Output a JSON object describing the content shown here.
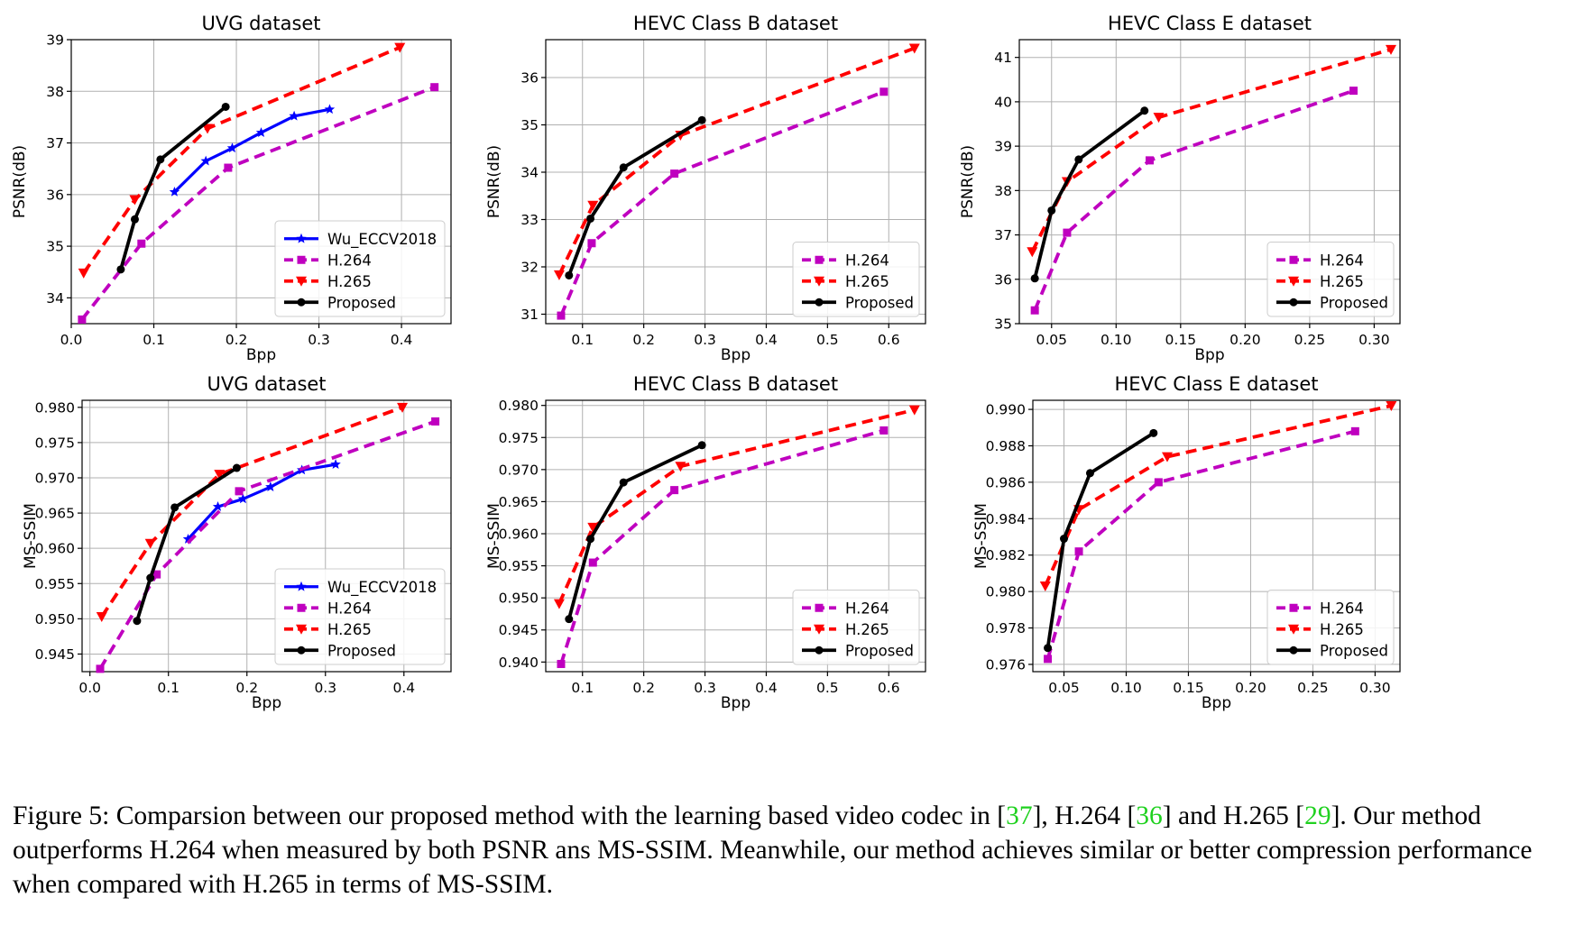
{
  "figure": {
    "caption": {
      "prefix": "Figure 5: Comparsion between our proposed method with the learning based video codec in [",
      "ref1": "37",
      "mid1": "], H.264 [",
      "ref2": "36",
      "mid2": "] and H.265 [",
      "ref3": "29",
      "suffix": "]. Our method outperforms H.264 when measured by both PSNR ans MS-SSIM. Meanwhile, our method achieves similar or better compression performance when compared with H.265 in terms of MS-SSIM."
    }
  },
  "colors": {
    "wu": "#0000ff",
    "h264": "#bf00bf",
    "h265": "#ff0000",
    "proposed": "#000000"
  },
  "chart_data": [
    {
      "type": "line",
      "title": "UVG dataset",
      "xlabel": "Bpp",
      "ylabel": "PSNR(dB)",
      "xlim": [
        0.0,
        0.46
      ],
      "ylim": [
        33.5,
        39.0
      ],
      "xticks": [
        0.0,
        0.1,
        0.2,
        0.3,
        0.4
      ],
      "xtick_labels": [
        "0.0",
        "0.1",
        "0.2",
        "0.3",
        "0.4"
      ],
      "yticks": [
        34,
        35,
        36,
        37,
        38,
        39
      ],
      "ytick_labels": [
        "34",
        "35",
        "36",
        "37",
        "38",
        "39"
      ],
      "grid": true,
      "legend": "lower-right",
      "series": [
        {
          "name": "Wu_ECCV2018",
          "style": "wu",
          "x": [
            0.125,
            0.163,
            0.195,
            0.23,
            0.27,
            0.313
          ],
          "y": [
            36.05,
            36.65,
            36.9,
            37.2,
            37.52,
            37.65
          ]
        },
        {
          "name": "H.264",
          "style": "h264",
          "x": [
            0.013,
            0.085,
            0.19,
            0.44
          ],
          "y": [
            33.58,
            35.05,
            36.52,
            38.08
          ]
        },
        {
          "name": "H.265",
          "style": "h265",
          "x": [
            0.015,
            0.077,
            0.165,
            0.398
          ],
          "y": [
            34.48,
            35.9,
            37.28,
            38.85
          ]
        },
        {
          "name": "Proposed",
          "style": "proposed",
          "x": [
            0.06,
            0.077,
            0.108,
            0.187
          ],
          "y": [
            34.55,
            35.52,
            36.68,
            37.7
          ]
        }
      ]
    },
    {
      "type": "line",
      "title": "HEVC Class B dataset",
      "xlabel": "Bpp",
      "ylabel": "PSNR(dB)",
      "xlim": [
        0.04,
        0.66
      ],
      "ylim": [
        30.8,
        36.8
      ],
      "xticks": [
        0.1,
        0.2,
        0.3,
        0.4,
        0.5,
        0.6
      ],
      "xtick_labels": [
        "0.1",
        "0.2",
        "0.3",
        "0.4",
        "0.5",
        "0.6"
      ],
      "yticks": [
        31,
        32,
        33,
        34,
        35,
        36
      ],
      "ytick_labels": [
        "31",
        "32",
        "33",
        "34",
        "35",
        "36"
      ],
      "grid": true,
      "legend": "lower-right",
      "series": [
        {
          "name": "H.264",
          "style": "h264",
          "x": [
            0.065,
            0.115,
            0.25,
            0.592
          ],
          "y": [
            30.97,
            32.5,
            33.97,
            35.7
          ]
        },
        {
          "name": "H.265",
          "style": "h265",
          "x": [
            0.062,
            0.117,
            0.26,
            0.642
          ],
          "y": [
            31.83,
            33.3,
            34.78,
            36.62
          ]
        },
        {
          "name": "Proposed",
          "style": "proposed",
          "x": [
            0.078,
            0.113,
            0.167,
            0.295
          ],
          "y": [
            31.82,
            33.02,
            34.1,
            35.1
          ]
        }
      ]
    },
    {
      "type": "line",
      "title": "HEVC Class E dataset",
      "xlabel": "Bpp",
      "ylabel": "PSNR(dB)",
      "xlim": [
        0.025,
        0.32
      ],
      "ylim": [
        35.0,
        41.4
      ],
      "xticks": [
        0.05,
        0.1,
        0.15,
        0.2,
        0.25,
        0.3
      ],
      "xtick_labels": [
        "0.05",
        "0.10",
        "0.15",
        "0.20",
        "0.25",
        "0.30"
      ],
      "yticks": [
        35,
        36,
        37,
        38,
        39,
        40,
        41
      ],
      "ytick_labels": [
        "35",
        "36",
        "37",
        "38",
        "39",
        "40",
        "41"
      ],
      "grid": true,
      "legend": "lower-right",
      "series": [
        {
          "name": "H.264",
          "style": "h264",
          "x": [
            0.037,
            0.062,
            0.126,
            0.284
          ],
          "y": [
            35.3,
            37.05,
            38.68,
            40.25
          ]
        },
        {
          "name": "H.265",
          "style": "h265",
          "x": [
            0.035,
            0.062,
            0.133,
            0.313
          ],
          "y": [
            36.62,
            38.2,
            39.65,
            41.18
          ]
        },
        {
          "name": "Proposed",
          "style": "proposed",
          "x": [
            0.037,
            0.05,
            0.071,
            0.122
          ],
          "y": [
            36.02,
            37.55,
            38.7,
            39.8
          ]
        }
      ]
    },
    {
      "type": "line",
      "title": "UVG dataset",
      "xlabel": "Bpp",
      "ylabel": "MS-SSIM",
      "xlim": [
        -0.01,
        0.46
      ],
      "ylim": [
        0.9425,
        0.981
      ],
      "xticks": [
        0.0,
        0.1,
        0.2,
        0.3,
        0.4
      ],
      "xtick_labels": [
        "0.0",
        "0.1",
        "0.2",
        "0.3",
        "0.4"
      ],
      "yticks": [
        0.945,
        0.95,
        0.955,
        0.96,
        0.965,
        0.97,
        0.975,
        0.98
      ],
      "ytick_labels": [
        "0.945",
        "0.950",
        "0.955",
        "0.960",
        "0.965",
        "0.970",
        "0.975",
        "0.980"
      ],
      "grid": true,
      "legend": "lower-right",
      "series": [
        {
          "name": "Wu_ECCV2018",
          "style": "wu",
          "x": [
            0.125,
            0.163,
            0.195,
            0.23,
            0.27,
            0.313
          ],
          "y": [
            0.9613,
            0.9659,
            0.967,
            0.9687,
            0.9711,
            0.9719
          ]
        },
        {
          "name": "H.264",
          "style": "h264",
          "x": [
            0.013,
            0.085,
            0.19,
            0.44
          ],
          "y": [
            0.9429,
            0.9563,
            0.9681,
            0.978
          ]
        },
        {
          "name": "H.265",
          "style": "h265",
          "x": [
            0.015,
            0.077,
            0.165,
            0.398
          ],
          "y": [
            0.9503,
            0.9607,
            0.9705,
            0.98
          ]
        },
        {
          "name": "Proposed",
          "style": "proposed",
          "x": [
            0.06,
            0.077,
            0.108,
            0.187
          ],
          "y": [
            0.9497,
            0.9558,
            0.9658,
            0.9714
          ]
        }
      ]
    },
    {
      "type": "line",
      "title": "HEVC Class B dataset",
      "xlabel": "Bpp",
      "ylabel": "MS-SSIM",
      "xlim": [
        0.04,
        0.66
      ],
      "ylim": [
        0.9385,
        0.9808
      ],
      "xticks": [
        0.1,
        0.2,
        0.3,
        0.4,
        0.5,
        0.6
      ],
      "xtick_labels": [
        "0.1",
        "0.2",
        "0.3",
        "0.4",
        "0.5",
        "0.6"
      ],
      "yticks": [
        0.94,
        0.945,
        0.95,
        0.955,
        0.96,
        0.965,
        0.97,
        0.975,
        0.98
      ],
      "ytick_labels": [
        "0.940",
        "0.945",
        "0.950",
        "0.955",
        "0.960",
        "0.965",
        "0.970",
        "0.975",
        "0.980"
      ],
      "grid": true,
      "legend": "lower-right",
      "series": [
        {
          "name": "H.264",
          "style": "h264",
          "x": [
            0.065,
            0.117,
            0.25,
            0.592
          ],
          "y": [
            0.9397,
            0.9555,
            0.9668,
            0.9761
          ]
        },
        {
          "name": "H.265",
          "style": "h265",
          "x": [
            0.062,
            0.117,
            0.26,
            0.642
          ],
          "y": [
            0.9491,
            0.961,
            0.9705,
            0.9793
          ]
        },
        {
          "name": "Proposed",
          "style": "proposed",
          "x": [
            0.078,
            0.113,
            0.167,
            0.295
          ],
          "y": [
            0.9467,
            0.9592,
            0.968,
            0.9738
          ]
        }
      ]
    },
    {
      "type": "line",
      "title": "HEVC Class E dataset",
      "xlabel": "Bpp",
      "ylabel": "MS-SSIM",
      "xlim": [
        0.025,
        0.32
      ],
      "ylim": [
        0.9756,
        0.9905
      ],
      "xticks": [
        0.05,
        0.1,
        0.15,
        0.2,
        0.25,
        0.3
      ],
      "xtick_labels": [
        "0.05",
        "0.10",
        "0.15",
        "0.20",
        "0.25",
        "0.30"
      ],
      "yticks": [
        0.976,
        0.978,
        0.98,
        0.982,
        0.984,
        0.986,
        0.988,
        0.99
      ],
      "ytick_labels": [
        "0.976",
        "0.978",
        "0.980",
        "0.982",
        "0.984",
        "0.986",
        "0.988",
        "0.990"
      ],
      "grid": true,
      "legend": "lower-right",
      "series": [
        {
          "name": "H.264",
          "style": "h264",
          "x": [
            0.037,
            0.062,
            0.126,
            0.284
          ],
          "y": [
            0.9763,
            0.9822,
            0.986,
            0.9888
          ]
        },
        {
          "name": "H.265",
          "style": "h265",
          "x": [
            0.035,
            0.062,
            0.133,
            0.313
          ],
          "y": [
            0.9803,
            0.9845,
            0.9874,
            0.9902
          ]
        },
        {
          "name": "Proposed",
          "style": "proposed",
          "x": [
            0.037,
            0.05,
            0.071,
            0.122
          ],
          "y": [
            0.9769,
            0.9829,
            0.9865,
            0.9887
          ]
        }
      ]
    }
  ]
}
